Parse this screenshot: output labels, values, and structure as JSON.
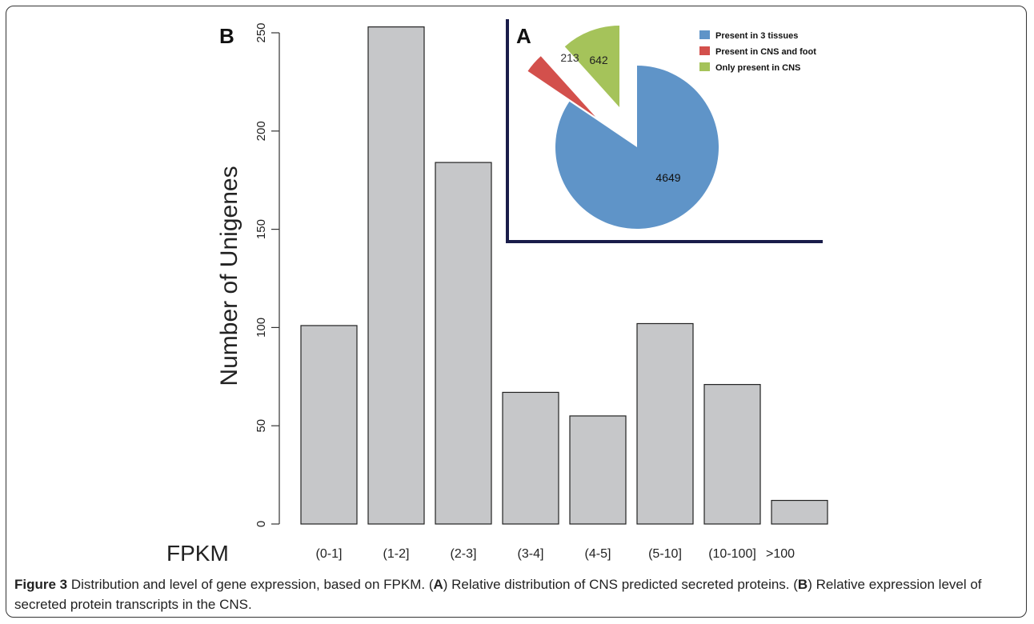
{
  "chart_data": [
    {
      "panel": "B",
      "type": "bar",
      "ylabel": "Number of Unigenes",
      "xlabel": "FPKM",
      "categories": [
        "(0-1]",
        "(1-2]",
        "(2-3]",
        "(3-4]",
        "(4-5]",
        "(5-10]",
        "(10-100]",
        ">100"
      ],
      "values": [
        101,
        253,
        184,
        67,
        55,
        102,
        71,
        12
      ],
      "ylim": [
        0,
        250
      ],
      "yticks": [
        0,
        50,
        100,
        150,
        200,
        250
      ],
      "grid": false,
      "bar_color": "#c6c7c9"
    },
    {
      "panel": "A",
      "type": "pie",
      "slices": [
        {
          "label": "Present in 3 tissues",
          "value": 4649,
          "color": "#5f94c8"
        },
        {
          "label": "Present in CNS and foot",
          "value": 213,
          "color": "#d3504c"
        },
        {
          "label": "Only present in CNS",
          "value": 642,
          "color": "#a5c35a"
        }
      ],
      "legend_position": "top-right"
    }
  ],
  "caption": {
    "label": "Figure 3",
    "text_1": " Distribution and level of gene expression, based on FPKM. (",
    "panel_a": "A",
    "text_2": ") Relative distribution of CNS predicted secreted proteins. (",
    "panel_b": "B",
    "text_3": ") Relative expression level of secreted protein transcripts in the CNS."
  }
}
